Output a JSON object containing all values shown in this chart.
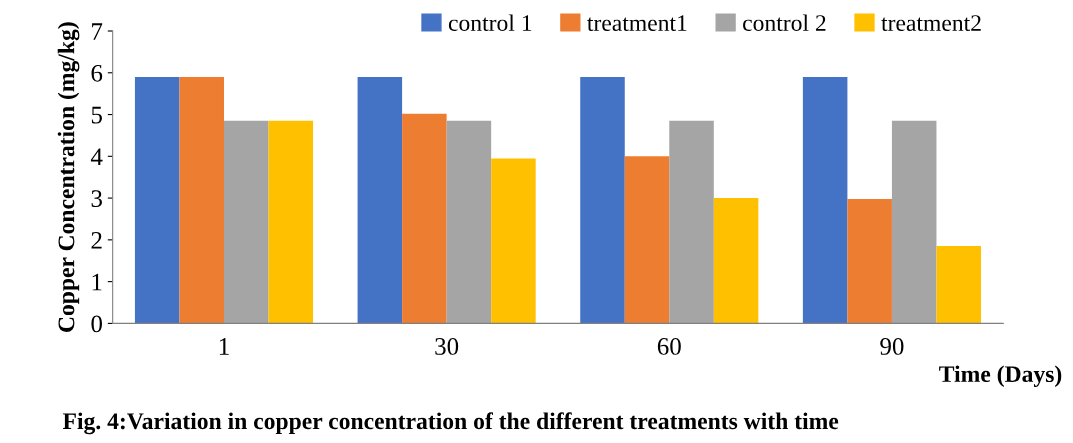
{
  "chart_data": {
    "type": "bar",
    "title": "Fig. 4:Variation in copper concentration of the different treatments with time",
    "xlabel": "Time (Days)",
    "ylabel": "Copper Concentration (mg/kg)",
    "categories": [
      "1",
      "30",
      "60",
      "90"
    ],
    "series": [
      {
        "name": "control 1",
        "color": "#4472c4",
        "values": [
          5.9,
          5.9,
          5.9,
          5.9
        ]
      },
      {
        "name": "treatment1",
        "color": "#ed7d31",
        "values": [
          5.9,
          5.02,
          4.0,
          2.98
        ]
      },
      {
        "name": "control 2",
        "color": "#a5a5a5",
        "values": [
          4.85,
          4.85,
          4.85,
          4.85
        ]
      },
      {
        "name": "treatment2",
        "color": "#ffc000",
        "values": [
          4.85,
          3.95,
          3.0,
          1.85
        ]
      }
    ],
    "ylim": [
      0,
      7
    ],
    "yticks": [
      0,
      1,
      2,
      3,
      4,
      5,
      6,
      7
    ],
    "grid": false,
    "legend": "top right"
  }
}
